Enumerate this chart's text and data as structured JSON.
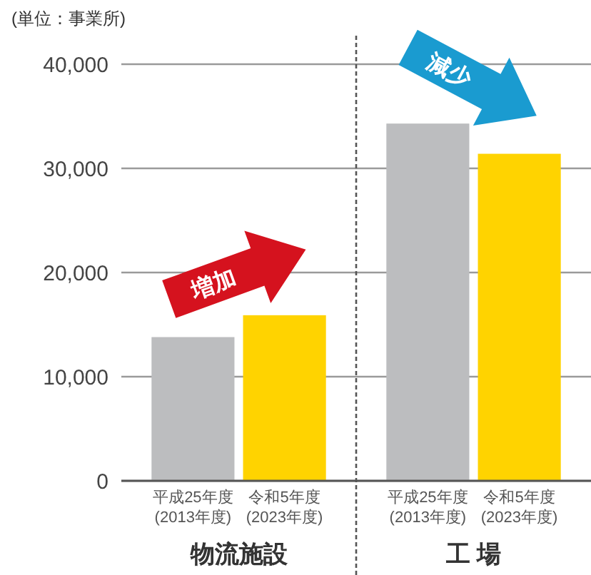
{
  "chart_data": {
    "type": "bar",
    "ylabel": "(単位：事業所)",
    "categories": [
      "物流施設",
      "工 場"
    ],
    "series": [
      {
        "name": "平成25年度\n(2013年度)",
        "color": "#bcbdbf",
        "values": [
          13800,
          34300
        ]
      },
      {
        "name": "令和5年度\n(2023年度)",
        "color": "#ffd300",
        "values": [
          15900,
          31400
        ]
      }
    ],
    "ylim": [
      0,
      40000
    ],
    "yticks": [
      0,
      {
        "value": 10000,
        "label": "10,000"
      },
      {
        "value": 20000,
        "label": "20,000"
      },
      {
        "value": 30000,
        "label": "30,000"
      },
      {
        "value": 40000,
        "label": "40,000"
      }
    ],
    "grid": "y",
    "annotations": [
      "増加",
      "減少"
    ]
  }
}
